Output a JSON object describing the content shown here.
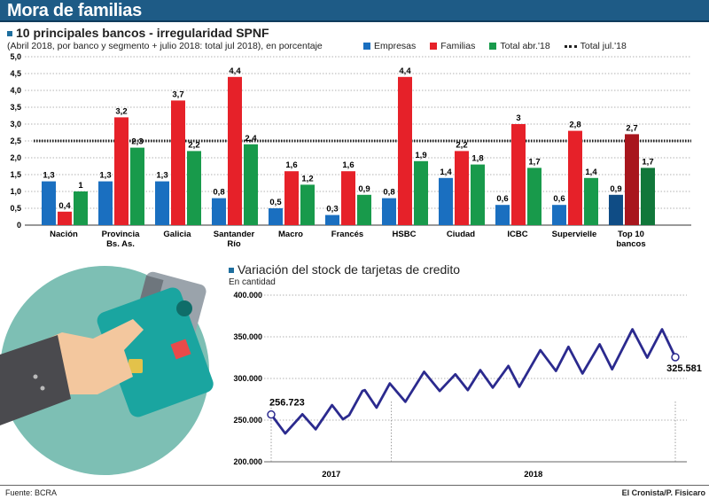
{
  "header": {
    "title": "Mora de familias"
  },
  "footer": {
    "source": "Fuente: BCRA",
    "credit": "El Cronista/P. Fisicaro"
  },
  "colors": {
    "header": "#1e5b86",
    "empresas": "#1a6fc0",
    "familias": "#e62129",
    "total_abr": "#189a4b",
    "top_empresas": "#0f4c85",
    "top_familias": "#a8161d",
    "top_total": "#11773a",
    "line": "#2b2a8e"
  },
  "illustration": {
    "icon": "hand-holding-credit-cards"
  },
  "chart_data": [
    {
      "type": "bar",
      "title": "10 principales bancos - irregularidad SPNF",
      "subtitle": "(Abril 2018, por banco y segmento + julio 2018: total jul 2018), en porcentaje",
      "categories": [
        "Nación",
        "Provincia Bs. As.",
        "Galicia",
        "Santander Río",
        "Macro",
        "Francés",
        "HSBC",
        "Ciudad",
        "ICBC",
        "Supervielle",
        "Top 10 bancos"
      ],
      "series": [
        {
          "name": "Empresas",
          "values": [
            1.3,
            1.3,
            1.3,
            0.8,
            0.5,
            0.3,
            0.8,
            1.4,
            0.6,
            0.6,
            0.9
          ]
        },
        {
          "name": "Familias",
          "values": [
            0.4,
            3.2,
            3.7,
            4.4,
            1.6,
            1.6,
            4.4,
            2.2,
            3.0,
            2.8,
            2.7
          ]
        },
        {
          "name": "Total abr.'18",
          "values": [
            1.0,
            2.3,
            2.2,
            2.4,
            1.2,
            0.9,
            1.9,
            1.8,
            1.7,
            1.4,
            1.7
          ]
        }
      ],
      "reference_line": {
        "name": "Total jul.'18",
        "value": 2.5
      },
      "yticks": [
        "5,0",
        "4,5",
        "4,0",
        "3,5",
        "3,0",
        "2,5",
        "2,0",
        "1,5",
        "1,0",
        "0,5",
        "0"
      ],
      "ylim": [
        0,
        5
      ],
      "grid": true,
      "legend": "top-right"
    },
    {
      "type": "line",
      "title": "Variación del stock de tarjetas de credito",
      "ylabel": "En cantidad",
      "yticks": [
        "400.000",
        "350.000",
        "300.000",
        "250.000",
        "200.000"
      ],
      "ylim": [
        200000,
        400000
      ],
      "xticks": [
        "2017",
        "2018"
      ],
      "grid": true,
      "annotations": {
        "start": "256.723",
        "end": "325.581"
      },
      "points": [
        [
          "2017-07-31",
          256723
        ],
        [
          "2017-08-18",
          234000
        ],
        [
          "2017-09-09",
          257000
        ],
        [
          "2017-09-26",
          239000
        ],
        [
          "2017-10-17",
          268000
        ],
        [
          "2017-10-31",
          251000
        ],
        [
          "2017-11-08",
          256000
        ],
        [
          "2017-11-25",
          285000
        ],
        [
          "2017-11-28",
          286000
        ],
        [
          "2017-12-13",
          265000
        ],
        [
          "2017-12-30",
          294000
        ],
        [
          "2018-01-19",
          272000
        ],
        [
          "2018-02-12",
          308000
        ],
        [
          "2018-03-04",
          285000
        ],
        [
          "2018-03-24",
          305000
        ],
        [
          "2018-04-09",
          286000
        ],
        [
          "2018-04-25",
          310000
        ],
        [
          "2018-05-11",
          289000
        ],
        [
          "2018-05-31",
          315000
        ],
        [
          "2018-06-14",
          290000
        ],
        [
          "2018-07-11",
          334000
        ],
        [
          "2018-07-31",
          309000
        ],
        [
          "2018-08-16",
          338000
        ],
        [
          "2018-09-03",
          306000
        ],
        [
          "2018-09-25",
          341000
        ],
        [
          "2018-10-11",
          311000
        ],
        [
          "2018-11-06",
          359000
        ],
        [
          "2018-11-25",
          325000
        ],
        [
          "2018-12-14",
          359000
        ],
        [
          "2018-12-31",
          325581
        ]
      ]
    }
  ]
}
